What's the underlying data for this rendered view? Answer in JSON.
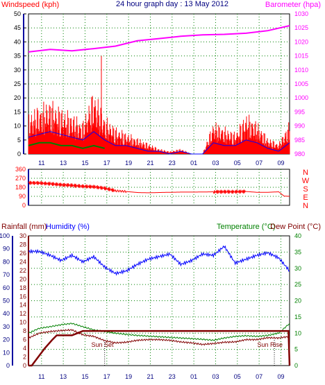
{
  "chart_data": [
    {
      "id": "wind",
      "type": "line",
      "title": "24 hour graph day : 13 May 2012",
      "left_label": "Windspeed (kph)",
      "right_label": "Barometer (hpa)",
      "ylim_left": [
        0,
        50
      ],
      "ylim_right": [
        980,
        1030
      ],
      "yticks_left": [
        "0",
        "5",
        "10",
        "15",
        "20",
        "25",
        "30",
        "35",
        "40",
        "45",
        "50"
      ],
      "yticks_right": [
        "980",
        "985",
        "990",
        "995",
        "1000",
        "1005",
        "1010",
        "1015",
        "1020",
        "1025",
        "1030"
      ],
      "xticks": [
        "11",
        "13",
        "15",
        "17",
        "19",
        "21",
        "23",
        "01",
        "03",
        "05",
        "07",
        "09"
      ],
      "colors": {
        "gust": "#ff0000",
        "average": "#0000ff",
        "wind_green": "#008000",
        "barometer": "#ff00ff",
        "axes": "#0000a0",
        "grid": "#008000",
        "title": "#000080"
      },
      "series": {
        "barometer": {
          "x": [
            0,
            2,
            4,
            6,
            8,
            10,
            12,
            14,
            16,
            18,
            20,
            22,
            24
          ],
          "values": [
            1016.4,
            1017.3,
            1016.8,
            1017.6,
            1018.5,
            1020.4,
            1021.2,
            1022.0,
            1022.5,
            1022.7,
            1023.1,
            1024.0,
            1025.8
          ]
        },
        "gust": {
          "x": [
            0,
            1,
            2,
            3,
            4,
            5,
            6,
            7,
            8,
            9,
            10,
            11,
            12,
            13,
            14,
            15,
            16,
            17,
            18,
            19,
            20,
            21,
            22,
            23,
            24
          ],
          "values": [
            15,
            18,
            20,
            17,
            15,
            12,
            24,
            14,
            10,
            8,
            6,
            4,
            2,
            1,
            2,
            0,
            0,
            12,
            10,
            8,
            15,
            12,
            6,
            4,
            12
          ]
        },
        "average": {
          "x": [
            0,
            1,
            2,
            3,
            4,
            5,
            6,
            7,
            8,
            9,
            10,
            11,
            12,
            13,
            14,
            15,
            16,
            17,
            18,
            19,
            20,
            21,
            22,
            23,
            24
          ],
          "values": [
            6,
            7,
            8,
            7,
            6,
            5,
            8,
            5,
            3,
            3,
            2,
            1,
            1,
            0,
            1,
            0,
            0,
            4,
            3,
            3,
            5,
            4,
            2,
            1,
            4
          ]
        },
        "green": {
          "x": [
            0,
            1,
            2,
            3,
            4,
            5,
            6,
            7
          ],
          "values": [
            3,
            4,
            4,
            3,
            3,
            2,
            3,
            2
          ]
        }
      }
    },
    {
      "id": "direction",
      "type": "line",
      "ylim": [
        0,
        360
      ],
      "yticks": [
        "0",
        "90",
        "180",
        "270",
        "360"
      ],
      "compass": [
        "N",
        "W",
        "S",
        "E",
        "N"
      ],
      "colors": {
        "direction": "#ff0000"
      },
      "series": {
        "direction": {
          "x": [
            0,
            1,
            2,
            3,
            4,
            5,
            6,
            7,
            8,
            9,
            10,
            11,
            12,
            13,
            14,
            15,
            16,
            17,
            18,
            19,
            20,
            21,
            22,
            23,
            23.5,
            24
          ],
          "values": [
            225,
            222,
            215,
            205,
            200,
            190,
            185,
            170,
            145,
            138,
            128,
            125,
            128,
            130,
            132,
            132,
            133,
            135,
            135,
            135,
            138,
            130,
            130,
            135,
            92,
            90
          ]
        }
      }
    },
    {
      "id": "temp",
      "type": "line",
      "left_label_rain": "Rainfall (mm)",
      "left_label_hum": "Humidity (%)",
      "right_label_temp": "Temperature (°C)",
      "right_label_dew": "Dew Point (°C)",
      "ylim_rain": [
        0,
        30
      ],
      "ylim_humidity": [
        0,
        100
      ],
      "ylim_temp": [
        0,
        40
      ],
      "yticks_humidity": [
        "0",
        "10",
        "20",
        "30",
        "40",
        "50",
        "60",
        "70",
        "80",
        "90",
        "100"
      ],
      "yticks_rain": [
        "0",
        "2",
        "4",
        "6",
        "8",
        "10",
        "12",
        "14",
        "16",
        "18",
        "20",
        "22",
        "24",
        "26",
        "28",
        "30"
      ],
      "yticks_temp": [
        "0",
        "5",
        "10",
        "15",
        "20",
        "25",
        "30",
        "35",
        "40"
      ],
      "annotations": [
        "Sun Set",
        "Sun Rise"
      ],
      "colors": {
        "humidity": "#0000ff",
        "temperature": "#008000",
        "dewpoint": "#800000",
        "rainfall": "#800000",
        "axes_left": "#0000a0",
        "grid": "#008000"
      },
      "series": {
        "humidity": {
          "x": [
            0,
            1,
            2,
            3,
            4,
            5,
            6,
            7,
            8,
            9,
            10,
            11,
            12,
            13,
            14,
            15,
            16,
            17,
            18,
            19,
            20,
            21,
            22,
            23,
            24
          ],
          "values": [
            88,
            88,
            85,
            81,
            85,
            80,
            84,
            76,
            71,
            73,
            78,
            82,
            84,
            86,
            78,
            81,
            86,
            85,
            92,
            79,
            82,
            85,
            87,
            83,
            73
          ]
        },
        "temperature": {
          "x": [
            0,
            1,
            2,
            3,
            4,
            5,
            6,
            7,
            8,
            9,
            10,
            11,
            12,
            13,
            14,
            15,
            16,
            17,
            18,
            19,
            20,
            21,
            22,
            23,
            24
          ],
          "values": [
            10,
            11.5,
            12,
            12.6,
            13,
            12,
            11,
            10.5,
            10,
            9.6,
            9.3,
            9.1,
            8.9,
            8.7,
            8.5,
            8.3,
            8.1,
            7.8,
            8.5,
            9.0,
            9.2,
            9.0,
            9.3,
            10.0,
            13.0
          ]
        },
        "dewpoint": {
          "x": [
            0,
            1,
            2,
            3,
            4,
            5,
            6,
            7,
            8,
            9,
            10,
            11,
            12,
            13,
            14,
            15,
            16,
            17,
            18,
            19,
            20,
            21,
            22,
            23,
            24
          ],
          "values": [
            8.5,
            10,
            10.5,
            10.8,
            11,
            9.5,
            9,
            7.7,
            7,
            7.2,
            7.8,
            8.0,
            8.0,
            7.8,
            7.3,
            7.0,
            6.5,
            6.8,
            7.2,
            7.3,
            8.0,
            8.0,
            8.6,
            8.5,
            9.0
          ]
        },
        "rainfall": {
          "x": [
            0,
            0.3,
            0.9,
            1.5,
            2.2,
            2.6,
            3.2,
            4.0,
            4.5,
            5.0,
            23.9,
            24
          ],
          "values": [
            0,
            0,
            2,
            4,
            6,
            7,
            7,
            7,
            7.5,
            8,
            8,
            0
          ]
        }
      }
    }
  ]
}
